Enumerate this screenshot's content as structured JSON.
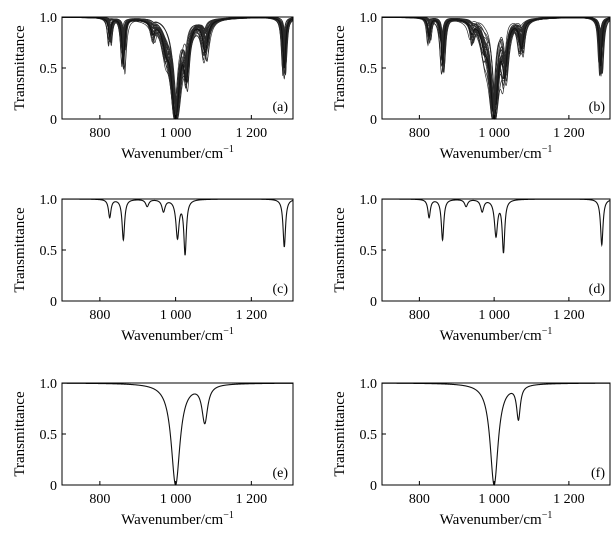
{
  "chart_data": [
    {
      "type": "line",
      "panel_label": "(a)",
      "xlabel": "Wavenumber/cm",
      "xlabel_sup": "−1",
      "ylabel": "Transmittance",
      "xlim": [
        700,
        1310
      ],
      "ylim": [
        0,
        1.0
      ],
      "xticks": [
        800,
        1000,
        1200
      ],
      "xtick_labels": [
        "800",
        "1 000",
        "1 200"
      ],
      "yticks": [
        0,
        0.5,
        1.0
      ],
      "ytick_labels": [
        "0",
        "0.5",
        "1.0"
      ],
      "grid": false,
      "peaks": [
        {
          "x": 826,
          "min": 0.82,
          "width": 4
        },
        {
          "x": 862,
          "min": 0.55,
          "width": 4
        },
        {
          "x": 940,
          "min": 0.88,
          "width": 6
        },
        {
          "x": 975,
          "min": 0.78,
          "width": 10
        },
        {
          "x": 1000,
          "min": 0.0,
          "width": 13
        },
        {
          "x": 1028,
          "min": 0.45,
          "width": 7
        },
        {
          "x": 1078,
          "min": 0.68,
          "width": 8
        },
        {
          "x": 1287,
          "min": 0.5,
          "width": 4
        }
      ],
      "dense_band": [
        810,
        1090
      ]
    },
    {
      "type": "line",
      "panel_label": "(b)",
      "xlabel": "Wavenumber/cm",
      "xlabel_sup": "−1",
      "ylabel": "Transmittance",
      "xlim": [
        700,
        1310
      ],
      "ylim": [
        0,
        1.0
      ],
      "xticks": [
        800,
        1000,
        1200
      ],
      "xtick_labels": [
        "800",
        "1 000",
        "1 200"
      ],
      "yticks": [
        0,
        0.5,
        1.0
      ],
      "ytick_labels": [
        "0",
        "0.5",
        "1.0"
      ],
      "grid": false,
      "peaks": [
        {
          "x": 826,
          "min": 0.82,
          "width": 4
        },
        {
          "x": 862,
          "min": 0.55,
          "width": 4
        },
        {
          "x": 940,
          "min": 0.88,
          "width": 6
        },
        {
          "x": 975,
          "min": 0.78,
          "width": 10
        },
        {
          "x": 1000,
          "min": 0.0,
          "width": 12
        },
        {
          "x": 1028,
          "min": 0.48,
          "width": 7
        },
        {
          "x": 1073,
          "min": 0.72,
          "width": 7
        },
        {
          "x": 1285,
          "min": 0.52,
          "width": 4
        }
      ],
      "dense_band": [
        810,
        1085
      ]
    },
    {
      "type": "line",
      "panel_label": "(c)",
      "xlabel": "Wavenumber/cm",
      "xlabel_sup": "−1",
      "ylabel": "Transmittance",
      "xlim": [
        700,
        1310
      ],
      "ylim": [
        0,
        1.0
      ],
      "xticks": [
        800,
        1000,
        1200
      ],
      "xtick_labels": [
        "800",
        "1 000",
        "1 200"
      ],
      "yticks": [
        0,
        0.5,
        1.0
      ],
      "ytick_labels": [
        "0",
        "0.5",
        "1.0"
      ],
      "grid": false,
      "peaks": [
        {
          "x": 826,
          "min": 0.82,
          "width": 4
        },
        {
          "x": 862,
          "min": 0.6,
          "width": 4
        },
        {
          "x": 925,
          "min": 0.93,
          "width": 5
        },
        {
          "x": 968,
          "min": 0.88,
          "width": 5
        },
        {
          "x": 1005,
          "min": 0.62,
          "width": 5
        },
        {
          "x": 1025,
          "min": 0.46,
          "width": 4
        },
        {
          "x": 1287,
          "min": 0.53,
          "width": 4
        }
      ],
      "dense_band": []
    },
    {
      "type": "line",
      "panel_label": "(d)",
      "xlabel": "Wavenumber/cm",
      "xlabel_sup": "−1",
      "ylabel": "Transmittance",
      "xlim": [
        700,
        1310
      ],
      "ylim": [
        0,
        1.0
      ],
      "xticks": [
        800,
        1000,
        1200
      ],
      "xtick_labels": [
        "800",
        "1 000",
        "1 200"
      ],
      "yticks": [
        0,
        0.5,
        1.0
      ],
      "ytick_labels": [
        "0",
        "0.5",
        "1.0"
      ],
      "grid": false,
      "peaks": [
        {
          "x": 826,
          "min": 0.82,
          "width": 4
        },
        {
          "x": 862,
          "min": 0.6,
          "width": 4
        },
        {
          "x": 925,
          "min": 0.93,
          "width": 5
        },
        {
          "x": 968,
          "min": 0.88,
          "width": 5
        },
        {
          "x": 1005,
          "min": 0.64,
          "width": 5
        },
        {
          "x": 1025,
          "min": 0.48,
          "width": 4
        },
        {
          "x": 1288,
          "min": 0.55,
          "width": 4
        }
      ],
      "dense_band": []
    },
    {
      "type": "line",
      "panel_label": "(e)",
      "xlabel": "Wavenumber/cm",
      "xlabel_sup": "−1",
      "ylabel": "Transmittance",
      "xlim": [
        700,
        1310
      ],
      "ylim": [
        0,
        1.0
      ],
      "xticks": [
        800,
        1000,
        1200
      ],
      "xtick_labels": [
        "800",
        "1 000",
        "1 200"
      ],
      "yticks": [
        0,
        0.5,
        1.0
      ],
      "ytick_labels": [
        "0",
        "0.5",
        "1.0"
      ],
      "grid": false,
      "peaks": [
        {
          "x": 1000,
          "min": 0.0,
          "width": 14
        },
        {
          "x": 1077,
          "min": 0.62,
          "width": 9
        }
      ],
      "dense_band": []
    },
    {
      "type": "line",
      "panel_label": "(f)",
      "xlabel": "Wavenumber/cm",
      "xlabel_sup": "−1",
      "ylabel": "Transmittance",
      "xlim": [
        700,
        1310
      ],
      "ylim": [
        0,
        1.0
      ],
      "xticks": [
        800,
        1000,
        1200
      ],
      "xtick_labels": [
        "800",
        "1 000",
        "1 200"
      ],
      "yticks": [
        0,
        0.5,
        1.0
      ],
      "ytick_labels": [
        "0",
        "0.5",
        "1.0"
      ],
      "grid": false,
      "peaks": [
        {
          "x": 1000,
          "min": 0.0,
          "width": 13
        },
        {
          "x": 1065,
          "min": 0.66,
          "width": 6
        }
      ],
      "dense_band": []
    }
  ]
}
